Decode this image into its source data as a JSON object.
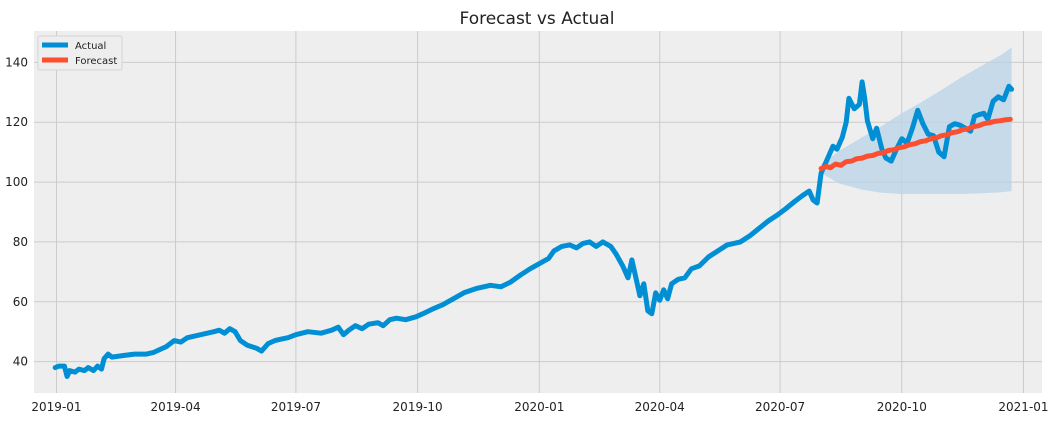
{
  "chart_data": {
    "type": "line",
    "title": "Forecast vs Actual",
    "xlabel": "",
    "ylabel": "",
    "x_range": [
      "2018-12-15",
      "2021-01-15"
    ],
    "ylim": [
      29.5,
      150.5
    ],
    "grid": true,
    "legend_position": "top-left",
    "x_tick_labels": [
      "2019-01",
      "2019-04",
      "2019-07",
      "2019-10",
      "2020-01",
      "2020-04",
      "2020-07",
      "2020-10",
      "2021-01"
    ],
    "y_ticks": [
      40,
      60,
      80,
      100,
      120,
      140
    ],
    "colors": {
      "actual": "#008fd5",
      "forecast": "#fc4f30",
      "band": "#b8d3e8",
      "panel": "#eeeeee",
      "grid": "#cbcbcb"
    },
    "series": [
      {
        "name": "Actual",
        "points": [
          [
            "2018-12-31",
            38
          ],
          [
            "2019-01-03",
            38.5
          ],
          [
            "2019-01-07",
            38.5
          ],
          [
            "2019-01-09",
            35
          ],
          [
            "2019-01-11",
            37
          ],
          [
            "2019-01-15",
            36.5
          ],
          [
            "2019-01-18",
            37.5
          ],
          [
            "2019-01-22",
            37
          ],
          [
            "2019-01-25",
            38
          ],
          [
            "2019-01-29",
            37
          ],
          [
            "2019-02-01",
            38.5
          ],
          [
            "2019-02-04",
            37.5
          ],
          [
            "2019-02-06",
            41
          ],
          [
            "2019-02-09",
            42.5
          ],
          [
            "2019-02-12",
            41.5
          ],
          [
            "2019-02-20",
            42
          ],
          [
            "2019-03-01",
            42.5
          ],
          [
            "2019-03-10",
            42.5
          ],
          [
            "2019-03-15",
            43
          ],
          [
            "2019-03-20",
            44
          ],
          [
            "2019-03-25",
            45
          ],
          [
            "2019-03-31",
            47
          ],
          [
            "2019-04-05",
            46.5
          ],
          [
            "2019-04-10",
            48
          ],
          [
            "2019-04-15",
            48.5
          ],
          [
            "2019-04-20",
            49
          ],
          [
            "2019-04-25",
            49.5
          ],
          [
            "2019-04-30",
            50
          ],
          [
            "2019-05-04",
            50.5
          ],
          [
            "2019-05-08",
            49.5
          ],
          [
            "2019-05-12",
            51
          ],
          [
            "2019-05-16",
            50
          ],
          [
            "2019-05-20",
            47
          ],
          [
            "2019-05-25",
            45.5
          ],
          [
            "2019-06-01",
            44.5
          ],
          [
            "2019-06-05",
            43.5
          ],
          [
            "2019-06-10",
            46
          ],
          [
            "2019-06-15",
            47
          ],
          [
            "2019-06-20",
            47.5
          ],
          [
            "2019-06-25",
            48
          ],
          [
            "2019-07-01",
            49
          ],
          [
            "2019-07-10",
            50
          ],
          [
            "2019-07-20",
            49.5
          ],
          [
            "2019-07-28",
            50.5
          ],
          [
            "2019-08-02",
            51.5
          ],
          [
            "2019-08-06",
            49
          ],
          [
            "2019-08-10",
            50.5
          ],
          [
            "2019-08-15",
            52
          ],
          [
            "2019-08-20",
            51
          ],
          [
            "2019-08-25",
            52.5
          ],
          [
            "2019-09-01",
            53
          ],
          [
            "2019-09-05",
            52
          ],
          [
            "2019-09-10",
            54
          ],
          [
            "2019-09-15",
            54.5
          ],
          [
            "2019-09-22",
            54
          ],
          [
            "2019-09-30",
            55
          ],
          [
            "2019-10-05",
            56
          ],
          [
            "2019-10-12",
            57.5
          ],
          [
            "2019-10-20",
            59
          ],
          [
            "2019-10-28",
            61
          ],
          [
            "2019-11-05",
            63
          ],
          [
            "2019-11-15",
            64.5
          ],
          [
            "2019-11-25",
            65.5
          ],
          [
            "2019-12-03",
            65
          ],
          [
            "2019-12-10",
            66.5
          ],
          [
            "2019-12-18",
            69
          ],
          [
            "2019-12-25",
            71
          ],
          [
            "2020-01-02",
            73
          ],
          [
            "2020-01-08",
            74.5
          ],
          [
            "2020-01-12",
            77
          ],
          [
            "2020-01-18",
            78.5
          ],
          [
            "2020-01-24",
            79
          ],
          [
            "2020-01-29",
            78
          ],
          [
            "2020-02-03",
            79.5
          ],
          [
            "2020-02-08",
            80
          ],
          [
            "2020-02-13",
            78.5
          ],
          [
            "2020-02-18",
            80
          ],
          [
            "2020-02-24",
            78.5
          ],
          [
            "2020-02-28",
            76
          ],
          [
            "2020-03-04",
            72
          ],
          [
            "2020-03-08",
            68
          ],
          [
            "2020-03-11",
            74
          ],
          [
            "2020-03-14",
            68
          ],
          [
            "2020-03-17",
            62
          ],
          [
            "2020-03-20",
            66
          ],
          [
            "2020-03-23",
            57
          ],
          [
            "2020-03-26",
            56
          ],
          [
            "2020-03-29",
            63
          ],
          [
            "2020-04-01",
            60.5
          ],
          [
            "2020-04-04",
            64
          ],
          [
            "2020-04-07",
            61
          ],
          [
            "2020-04-10",
            66
          ],
          [
            "2020-04-15",
            67.5
          ],
          [
            "2020-04-20",
            68
          ],
          [
            "2020-04-25",
            71
          ],
          [
            "2020-05-01",
            72
          ],
          [
            "2020-05-08",
            75
          ],
          [
            "2020-05-15",
            77
          ],
          [
            "2020-05-22",
            79
          ],
          [
            "2020-06-01",
            80
          ],
          [
            "2020-06-08",
            82
          ],
          [
            "2020-06-15",
            84.5
          ],
          [
            "2020-06-22",
            87
          ],
          [
            "2020-06-29",
            89
          ],
          [
            "2020-07-05",
            91
          ],
          [
            "2020-07-12",
            93.5
          ],
          [
            "2020-07-18",
            95.5
          ],
          [
            "2020-07-23",
            97
          ],
          [
            "2020-07-26",
            94
          ],
          [
            "2020-07-29",
            93
          ],
          [
            "2020-08-01",
            103
          ],
          [
            "2020-08-04",
            106
          ],
          [
            "2020-08-07",
            109
          ],
          [
            "2020-08-10",
            112
          ],
          [
            "2020-08-13",
            111
          ],
          [
            "2020-08-17",
            115
          ],
          [
            "2020-08-20",
            120
          ],
          [
            "2020-08-22",
            128
          ],
          [
            "2020-08-26",
            124.5
          ],
          [
            "2020-08-30",
            126
          ],
          [
            "2020-09-01",
            133.5
          ],
          [
            "2020-09-03",
            128
          ],
          [
            "2020-09-05",
            120.5
          ],
          [
            "2020-09-09",
            114.5
          ],
          [
            "2020-09-12",
            118
          ],
          [
            "2020-09-16",
            111
          ],
          [
            "2020-09-19",
            108
          ],
          [
            "2020-09-23",
            107
          ],
          [
            "2020-09-27",
            111
          ],
          [
            "2020-10-01",
            114.5
          ],
          [
            "2020-10-05",
            113
          ],
          [
            "2020-10-09",
            118
          ],
          [
            "2020-10-13",
            124
          ],
          [
            "2020-10-17",
            119.5
          ],
          [
            "2020-10-21",
            116
          ],
          [
            "2020-10-25",
            115.5
          ],
          [
            "2020-10-29",
            110
          ],
          [
            "2020-11-02",
            108.5
          ],
          [
            "2020-11-06",
            118.5
          ],
          [
            "2020-11-10",
            119.5
          ],
          [
            "2020-11-14",
            119
          ],
          [
            "2020-11-18",
            118
          ],
          [
            "2020-11-22",
            117
          ],
          [
            "2020-11-25",
            122
          ],
          [
            "2020-11-28",
            122.5
          ],
          [
            "2020-12-02",
            123
          ],
          [
            "2020-12-05",
            121
          ],
          [
            "2020-12-09",
            127
          ],
          [
            "2020-12-13",
            128.5
          ],
          [
            "2020-12-17",
            127.5
          ],
          [
            "2020-12-21",
            132
          ],
          [
            "2020-12-23",
            131
          ]
        ]
      },
      {
        "name": "Forecast",
        "points": [
          [
            "2020-08-01",
            104.5
          ],
          [
            "2020-08-05",
            105.2
          ],
          [
            "2020-08-08",
            104.8
          ],
          [
            "2020-08-12",
            106
          ],
          [
            "2020-08-16",
            105.6
          ],
          [
            "2020-08-20",
            106.8
          ],
          [
            "2020-08-24",
            107
          ],
          [
            "2020-08-28",
            107.8
          ],
          [
            "2020-09-01",
            108
          ],
          [
            "2020-09-05",
            108.7
          ],
          [
            "2020-09-09",
            108.9
          ],
          [
            "2020-09-13",
            109.6
          ],
          [
            "2020-09-17",
            109.8
          ],
          [
            "2020-09-21",
            110.6
          ],
          [
            "2020-09-25",
            110.8
          ],
          [
            "2020-09-29",
            111.5
          ],
          [
            "2020-10-03",
            111.8
          ],
          [
            "2020-10-07",
            112.5
          ],
          [
            "2020-10-11",
            112.8
          ],
          [
            "2020-10-15",
            113.5
          ],
          [
            "2020-10-19",
            113.8
          ],
          [
            "2020-10-23",
            114.5
          ],
          [
            "2020-10-27",
            114.8
          ],
          [
            "2020-10-31",
            115.5
          ],
          [
            "2020-11-04",
            115.8
          ],
          [
            "2020-11-08",
            116.5
          ],
          [
            "2020-11-12",
            116.8
          ],
          [
            "2020-11-16",
            117.5
          ],
          [
            "2020-11-20",
            117.8
          ],
          [
            "2020-11-24",
            118.5
          ],
          [
            "2020-11-28",
            118.8
          ],
          [
            "2020-12-02",
            119.5
          ],
          [
            "2020-12-06",
            119.8
          ],
          [
            "2020-12-10",
            120.3
          ],
          [
            "2020-12-14",
            120.5
          ],
          [
            "2020-12-18",
            120.8
          ],
          [
            "2020-12-22",
            121
          ]
        ]
      }
    ],
    "confidence_band": {
      "upper": [
        [
          "2020-08-01",
          106
        ],
        [
          "2020-08-15",
          110.5
        ],
        [
          "2020-09-01",
          115
        ],
        [
          "2020-09-15",
          118.5
        ],
        [
          "2020-10-01",
          123
        ],
        [
          "2020-10-15",
          126.5
        ],
        [
          "2020-11-01",
          131
        ],
        [
          "2020-11-15",
          135
        ],
        [
          "2020-12-01",
          139
        ],
        [
          "2020-12-15",
          142.5
        ],
        [
          "2020-12-23",
          145
        ]
      ],
      "lower": [
        [
          "2020-08-01",
          103
        ],
        [
          "2020-08-15",
          99.5
        ],
        [
          "2020-09-01",
          97.5
        ],
        [
          "2020-09-15",
          96.5
        ],
        [
          "2020-10-01",
          96
        ],
        [
          "2020-10-15",
          96
        ],
        [
          "2020-11-01",
          96
        ],
        [
          "2020-11-15",
          96
        ],
        [
          "2020-12-01",
          96.3
        ],
        [
          "2020-12-15",
          96.6
        ],
        [
          "2020-12-23",
          97
        ]
      ]
    }
  }
}
